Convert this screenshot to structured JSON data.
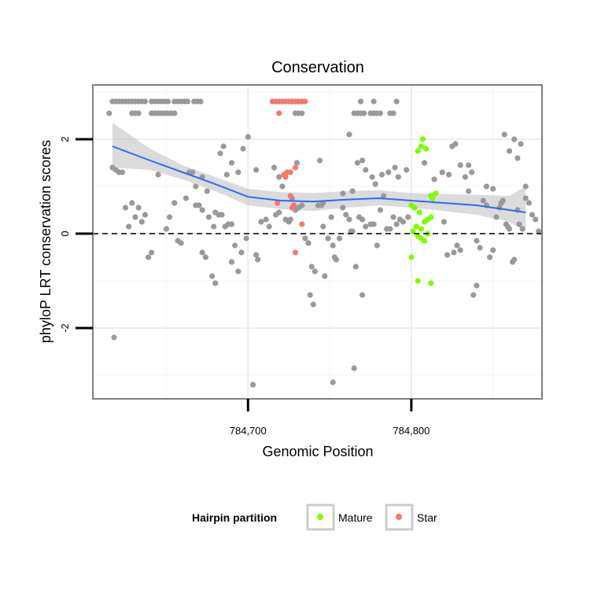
{
  "chart_data": {
    "type": "scatter",
    "title": "Conservation",
    "xlabel": "Genomic Position",
    "ylabel": "phyloP LRT conservation scores",
    "xlim": [
      784605,
      784880
    ],
    "ylim": [
      -3.5,
      3.15
    ],
    "x_ticks": [
      784700,
      784800
    ],
    "x_tick_labels": [
      "784,700",
      "784,800"
    ],
    "y_ticks": [
      -2,
      0,
      2
    ],
    "y_tick_labels": [
      "-2",
      "0",
      "2"
    ],
    "grid": true,
    "reference_line": {
      "y": 0,
      "style": "dashed"
    },
    "legend": {
      "title": "Hairpin partition",
      "position": "bottom",
      "entries": [
        {
          "name": "Mature",
          "color": "#7cfc00"
        },
        {
          "name": "Star",
          "color": "#f8766d"
        }
      ]
    },
    "colors": {
      "other": "#999999",
      "mature": "#7cfc00",
      "star": "#f8766d",
      "smooth_line": "#3366ff",
      "ribbon": "#bebebe"
    },
    "series": [
      {
        "group": "other",
        "points": [
          [
            784617,
            2.8
          ],
          [
            784619,
            2.8
          ],
          [
            784621,
            2.8
          ],
          [
            784623,
            2.8
          ],
          [
            784625,
            2.8
          ],
          [
            784627,
            2.8
          ],
          [
            784629,
            2.8
          ],
          [
            784631,
            2.8
          ],
          [
            784633,
            2.8
          ],
          [
            784635,
            2.8
          ],
          [
            784637,
            2.8
          ],
          [
            784641,
            2.8
          ],
          [
            784643,
            2.8
          ],
          [
            784645,
            2.8
          ],
          [
            784647,
            2.8
          ],
          [
            784649,
            2.8
          ],
          [
            784651,
            2.8
          ],
          [
            784655,
            2.8
          ],
          [
            784657,
            2.8
          ],
          [
            784659,
            2.8
          ],
          [
            784661,
            2.8
          ],
          [
            784663,
            2.8
          ],
          [
            784667,
            2.8
          ],
          [
            784669,
            2.8
          ],
          [
            784671,
            2.8
          ],
          [
            784727,
            2.8
          ],
          [
            784729,
            2.8
          ],
          [
            784731,
            2.8
          ],
          [
            784769,
            2.8
          ],
          [
            784777,
            2.8
          ],
          [
            784791,
            2.8
          ],
          [
            784615,
            2.55
          ],
          [
            784629,
            2.55
          ],
          [
            784631,
            2.55
          ],
          [
            784633,
            2.55
          ],
          [
            784641,
            2.55
          ],
          [
            784643,
            2.55
          ],
          [
            784645,
            2.55
          ],
          [
            784647,
            2.55
          ],
          [
            784649,
            2.55
          ],
          [
            784651,
            2.55
          ],
          [
            784653,
            2.55
          ],
          [
            784655,
            2.55
          ],
          [
            784729,
            2.55
          ],
          [
            784731,
            2.55
          ],
          [
            784733,
            2.55
          ],
          [
            784765,
            2.55
          ],
          [
            784767,
            2.55
          ],
          [
            784769,
            2.55
          ],
          [
            784771,
            2.55
          ],
          [
            784775,
            2.55
          ],
          [
            784777,
            2.55
          ],
          [
            784779,
            2.55
          ],
          [
            784781,
            2.55
          ],
          [
            784787,
            2.55
          ],
          [
            784789,
            2.55
          ],
          [
            784617,
            1.4
          ],
          [
            784619,
            1.35
          ],
          [
            784621,
            1.3
          ],
          [
            784623,
            1.3
          ],
          [
            784625,
            0.55
          ],
          [
            784627,
            0.15
          ],
          [
            784629,
            0.65
          ],
          [
            784631,
            0.35
          ],
          [
            784633,
            0.55
          ],
          [
            784635,
            0.25
          ],
          [
            784637,
            0.4
          ],
          [
            784639,
            -0.5
          ],
          [
            784641,
            -0.4
          ],
          [
            784645,
            1.25
          ],
          [
            784650,
            0.1
          ],
          [
            784652,
            0.35
          ],
          [
            784655,
            0.65
          ],
          [
            784657,
            -0.15
          ],
          [
            784659,
            -0.2
          ],
          [
            784662,
            0.75
          ],
          [
            784664,
            1.3
          ],
          [
            784666,
            1.3
          ],
          [
            784668,
            0.6
          ],
          [
            784670,
            0.6
          ],
          [
            784672,
            0.5
          ],
          [
            784672,
            -0.4
          ],
          [
            784674,
            -0.5
          ],
          [
            784676,
            0.35
          ],
          [
            784678,
            -0.9
          ],
          [
            784679,
            0.15
          ],
          [
            784680,
            -1.05
          ],
          [
            784682,
            0.4
          ],
          [
            784684,
            0.4
          ],
          [
            784686,
            0.15
          ],
          [
            784688,
            0.2
          ],
          [
            784690,
            -0.6
          ],
          [
            784690,
            0.2
          ],
          [
            784692,
            -0.25
          ],
          [
            784694,
            -0.8
          ],
          [
            784696,
            -0.4
          ],
          [
            784699,
            -0.1
          ],
          [
            784705,
            -0.45
          ],
          [
            784706,
            -0.55
          ],
          [
            784708,
            0.25
          ],
          [
            784711,
            0.3
          ],
          [
            784713,
            0.15
          ],
          [
            784717,
            0.4
          ],
          [
            784719,
            0.45
          ],
          [
            784723,
            0.3
          ],
          [
            784725,
            0.25
          ],
          [
            784726,
            0.3
          ],
          [
            784729,
            0.5
          ],
          [
            784731,
            0.55
          ],
          [
            784733,
            0.6
          ],
          [
            784735,
            -0.1
          ],
          [
            784737,
            -0.2
          ],
          [
            784739,
            -0.7
          ],
          [
            784741,
            -0.8
          ],
          [
            784743,
            0.6
          ],
          [
            784745,
            0.6
          ],
          [
            784746,
            0.15
          ],
          [
            784747,
            -0.9
          ],
          [
            784749,
            -0.1
          ],
          [
            784751,
            0.35
          ],
          [
            784753,
            -0.5
          ],
          [
            784754,
            -0.55
          ],
          [
            784756,
            -0.1
          ],
          [
            784758,
            0.55
          ],
          [
            784760,
            0.4
          ],
          [
            784762,
            0.3
          ],
          [
            784763,
            0.05
          ],
          [
            784764,
            0.05
          ],
          [
            784766,
            -0.7
          ],
          [
            784768,
            0.35
          ],
          [
            784770,
            0.3
          ],
          [
            784772,
            0.15
          ],
          [
            784775,
            0.2
          ],
          [
            784777,
            0.2
          ],
          [
            784779,
            -0.25
          ],
          [
            784781,
            0.5
          ],
          [
            784783,
            0.8
          ],
          [
            784785,
            0.1
          ],
          [
            784787,
            0.1
          ],
          [
            784789,
            0.35
          ],
          [
            784791,
            0.2
          ],
          [
            784793,
            0.3
          ],
          [
            784795,
            0.25
          ],
          [
            784797,
            1.35
          ],
          [
            784798,
            0.35
          ],
          [
            784820,
            0.25
          ],
          [
            784822,
            -0.45
          ],
          [
            784826,
            -0.4
          ],
          [
            784828,
            -0.25
          ],
          [
            784830,
            -0.35
          ],
          [
            784835,
            1.45
          ],
          [
            784837,
            1.3
          ],
          [
            784840,
            -0.15
          ],
          [
            784842,
            -0.3
          ],
          [
            784844,
            0.7
          ],
          [
            784846,
            0.6
          ],
          [
            784848,
            -0.5
          ],
          [
            784850,
            -0.35
          ],
          [
            784852,
            0.35
          ],
          [
            784854,
            0.55
          ],
          [
            784855,
            0.65
          ],
          [
            784856,
            0.7
          ],
          [
            784858,
            0.2
          ],
          [
            784859,
            0.15
          ],
          [
            784860,
            0.1
          ],
          [
            784862,
            -0.6
          ],
          [
            784863,
            -0.55
          ],
          [
            784865,
            0.5
          ],
          [
            784866,
            0.2
          ],
          [
            784868,
            0.1
          ],
          [
            784870,
            0.75
          ],
          [
            784872,
            0.65
          ],
          [
            784874,
            0.4
          ],
          [
            784876,
            0.3
          ],
          [
            784878,
            0.05
          ],
          [
            784668,
            1.0
          ],
          [
            784672,
            1.2
          ],
          [
            784675,
            0.9
          ],
          [
            784680,
            0.45
          ],
          [
            784683,
            1.7
          ],
          [
            784685,
            1.85
          ],
          [
            784687,
            1.25
          ],
          [
            784690,
            1.5
          ],
          [
            784694,
            1.3
          ],
          [
            784697,
            1.8
          ],
          [
            784700,
            2.05
          ],
          [
            784705,
            1.35
          ],
          [
            784716,
            1.4
          ],
          [
            784719,
            1.2
          ],
          [
            784721,
            1.0
          ],
          [
            784727,
            0.75
          ],
          [
            784730,
            1.5
          ],
          [
            784738,
            -1.3
          ],
          [
            784740,
            -1.5
          ],
          [
            784744,
            1.55
          ],
          [
            784746,
            0.65
          ],
          [
            784752,
            -0.25
          ],
          [
            784758,
            0.85
          ],
          [
            784762,
            2.1
          ],
          [
            784764,
            0.9
          ],
          [
            784767,
            1.5
          ],
          [
            784770,
            1.55
          ],
          [
            784772,
            1.35
          ],
          [
            784776,
            1.2
          ],
          [
            784778,
            1.05
          ],
          [
            784782,
            1.25
          ],
          [
            784786,
            1.3
          ],
          [
            784790,
            1.4
          ],
          [
            784792,
            1.2
          ],
          [
            784808,
            1.5
          ],
          [
            784814,
            1.15
          ],
          [
            784819,
            1.3
          ],
          [
            784823,
            1.25
          ],
          [
            784825,
            1.85
          ],
          [
            784827,
            1.9
          ],
          [
            784830,
            1.45
          ],
          [
            784833,
            1.2
          ],
          [
            784835,
            0.9
          ],
          [
            784838,
            -1.3
          ],
          [
            784840,
            -1.1
          ],
          [
            784846,
            1.0
          ],
          [
            784850,
            0.95
          ],
          [
            784857,
            2.1
          ],
          [
            784860,
            1.75
          ],
          [
            784863,
            2.0
          ],
          [
            784865,
            1.6
          ],
          [
            784867,
            1.9
          ],
          [
            784870,
            1.0
          ],
          [
            784618,
            -2.2
          ],
          [
            784703,
            -3.2
          ],
          [
            784752,
            -3.15
          ],
          [
            784765,
            -2.85
          ],
          [
            784770,
            -1.3
          ]
        ]
      },
      {
        "group": "mature",
        "points": [
          [
            784807,
            2.0
          ],
          [
            784806,
            1.85
          ],
          [
            784804,
            1.75
          ],
          [
            784809,
            1.8
          ],
          [
            784812,
            0.8
          ],
          [
            784815,
            0.85
          ],
          [
            784813,
            0.75
          ],
          [
            784800,
            0.6
          ],
          [
            784802,
            0.55
          ],
          [
            784805,
            0.45
          ],
          [
            784810,
            0.3
          ],
          [
            784812,
            0.35
          ],
          [
            784808,
            0.25
          ],
          [
            784803,
            0.15
          ],
          [
            784806,
            0.1
          ],
          [
            784801,
            0.05
          ],
          [
            784804,
            -0.05
          ],
          [
            784810,
            0.0
          ],
          [
            784806,
            -0.1
          ],
          [
            784808,
            -0.15
          ],
          [
            784800,
            -0.5
          ],
          [
            784804,
            -1.0
          ],
          [
            784812,
            -1.05
          ]
        ]
      },
      {
        "group": "star",
        "points": [
          [
            784715,
            2.8
          ],
          [
            784717,
            2.8
          ],
          [
            784719,
            2.8
          ],
          [
            784721,
            2.8
          ],
          [
            784723,
            2.8
          ],
          [
            784725,
            2.8
          ],
          [
            784727,
            2.8
          ],
          [
            784729,
            2.8
          ],
          [
            784731,
            2.8
          ],
          [
            784733,
            2.8
          ],
          [
            784735,
            2.8
          ],
          [
            784719,
            2.55
          ],
          [
            784722,
            1.25
          ],
          [
            784724,
            1.3
          ],
          [
            784723,
            1.2
          ],
          [
            784726,
            1.3
          ],
          [
            784729,
            1.4
          ],
          [
            784718,
            0.65
          ],
          [
            784726,
            0.8
          ],
          [
            784728,
            0.6
          ],
          [
            784727,
            0.55
          ],
          [
            784733,
            0.2
          ],
          [
            784729,
            -0.4
          ]
        ]
      }
    ],
    "smooth": {
      "x": [
        784617,
        784640,
        784660,
        784680,
        784700,
        784720,
        784740,
        784760,
        784780,
        784800,
        784820,
        784840,
        784860,
        784870
      ],
      "y": [
        1.85,
        1.55,
        1.3,
        1.05,
        0.78,
        0.7,
        0.68,
        0.72,
        0.75,
        0.7,
        0.65,
        0.6,
        0.5,
        0.45
      ],
      "lo": [
        1.4,
        1.35,
        1.15,
        0.9,
        0.6,
        0.52,
        0.48,
        0.55,
        0.6,
        0.55,
        0.48,
        0.4,
        0.25,
        0.05
      ],
      "hi": [
        2.35,
        1.8,
        1.45,
        1.2,
        0.95,
        0.88,
        0.86,
        0.9,
        0.92,
        0.86,
        0.84,
        0.82,
        0.8,
        1.0
      ]
    }
  }
}
